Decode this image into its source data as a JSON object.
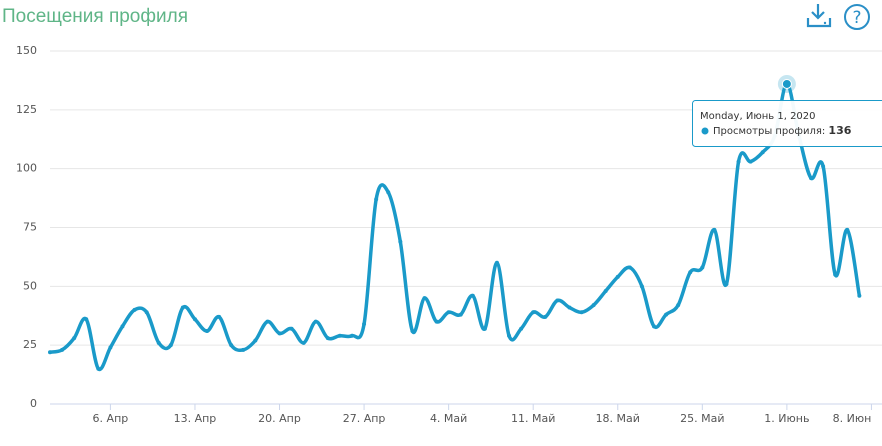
{
  "chart_data": {
    "type": "line",
    "title": "Посещения профиля",
    "series": [
      {
        "name": "Просмотры профиля",
        "color": "#1a9ac9",
        "values": [
          22,
          23,
          28,
          36,
          15,
          24,
          33,
          40,
          39,
          26,
          25,
          41,
          36,
          31,
          37,
          25,
          23,
          27,
          35,
          30,
          32,
          26,
          35,
          28,
          29,
          29,
          34,
          87,
          90,
          69,
          31,
          45,
          35,
          39,
          38,
          46,
          32,
          60,
          29,
          32,
          39,
          37,
          44,
          41,
          39,
          42,
          48,
          54,
          58,
          50,
          33,
          38,
          42,
          56,
          58,
          74,
          51,
          103,
          103,
          107,
          114,
          136,
          114,
          96,
          101,
          55,
          74,
          46
        ]
      }
    ],
    "xticks": [
      {
        "value": 5,
        "label": "6. Апр"
      },
      {
        "value": 12,
        "label": "13. Апр"
      },
      {
        "value": 19,
        "label": "20. Апр"
      },
      {
        "value": 26,
        "label": "27. Апр"
      },
      {
        "value": 33,
        "label": "4. Май"
      },
      {
        "value": 40,
        "label": "11. Май"
      },
      {
        "value": 47,
        "label": "18. Май"
      },
      {
        "value": 54,
        "label": "25. Май"
      },
      {
        "value": 61,
        "label": "1. Июнь"
      },
      {
        "value": 68,
        "label": "8. Июн"
      }
    ],
    "ylim": [
      0,
      150
    ],
    "yticks": [
      0,
      25,
      50,
      75,
      100,
      125,
      150
    ],
    "grid": true,
    "tooltip": {
      "title": "Monday, Июнь 1, 2020"
    }
  }
}
